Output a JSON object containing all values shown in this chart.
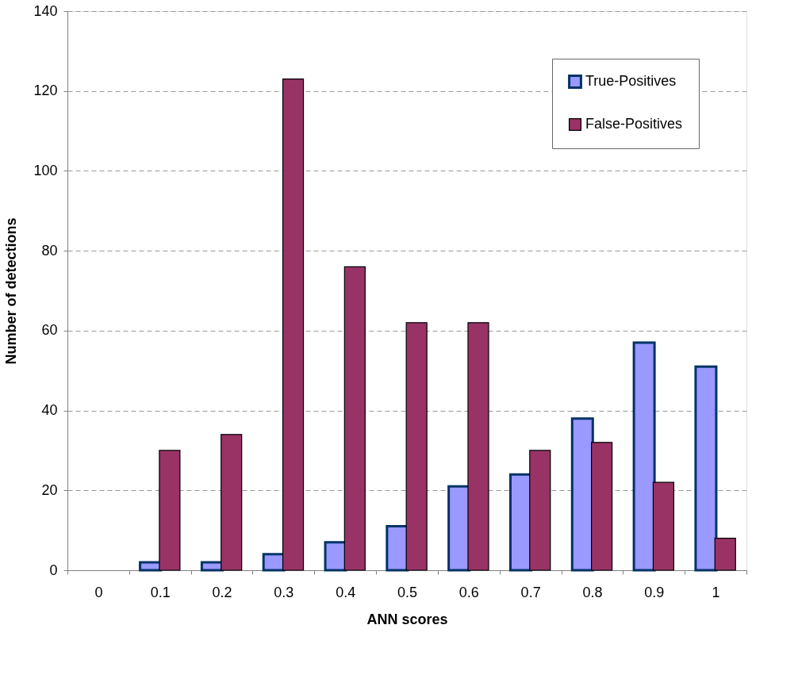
{
  "chart_data": {
    "type": "bar",
    "xlabel": "ANN scores",
    "ylabel": "Number of detections",
    "categories": [
      "0",
      "0.1",
      "0.2",
      "0.3",
      "0.4",
      "0.5",
      "0.6",
      "0.7",
      "0.8",
      "0.9",
      "1"
    ],
    "series": [
      {
        "name": "True-Positives",
        "color": "#9999ff",
        "values": [
          null,
          2,
          2,
          4,
          7,
          11,
          21,
          24,
          38,
          57,
          51
        ]
      },
      {
        "name": "False-Positives",
        "color": "#993366",
        "values": [
          null,
          30,
          34,
          123,
          76,
          62,
          62,
          30,
          32,
          22,
          8
        ]
      }
    ],
    "ylim": [
      0,
      140
    ],
    "yticks": [
      0,
      20,
      40,
      60,
      80,
      100,
      120,
      140
    ],
    "grid": "y",
    "legend": "top right"
  }
}
